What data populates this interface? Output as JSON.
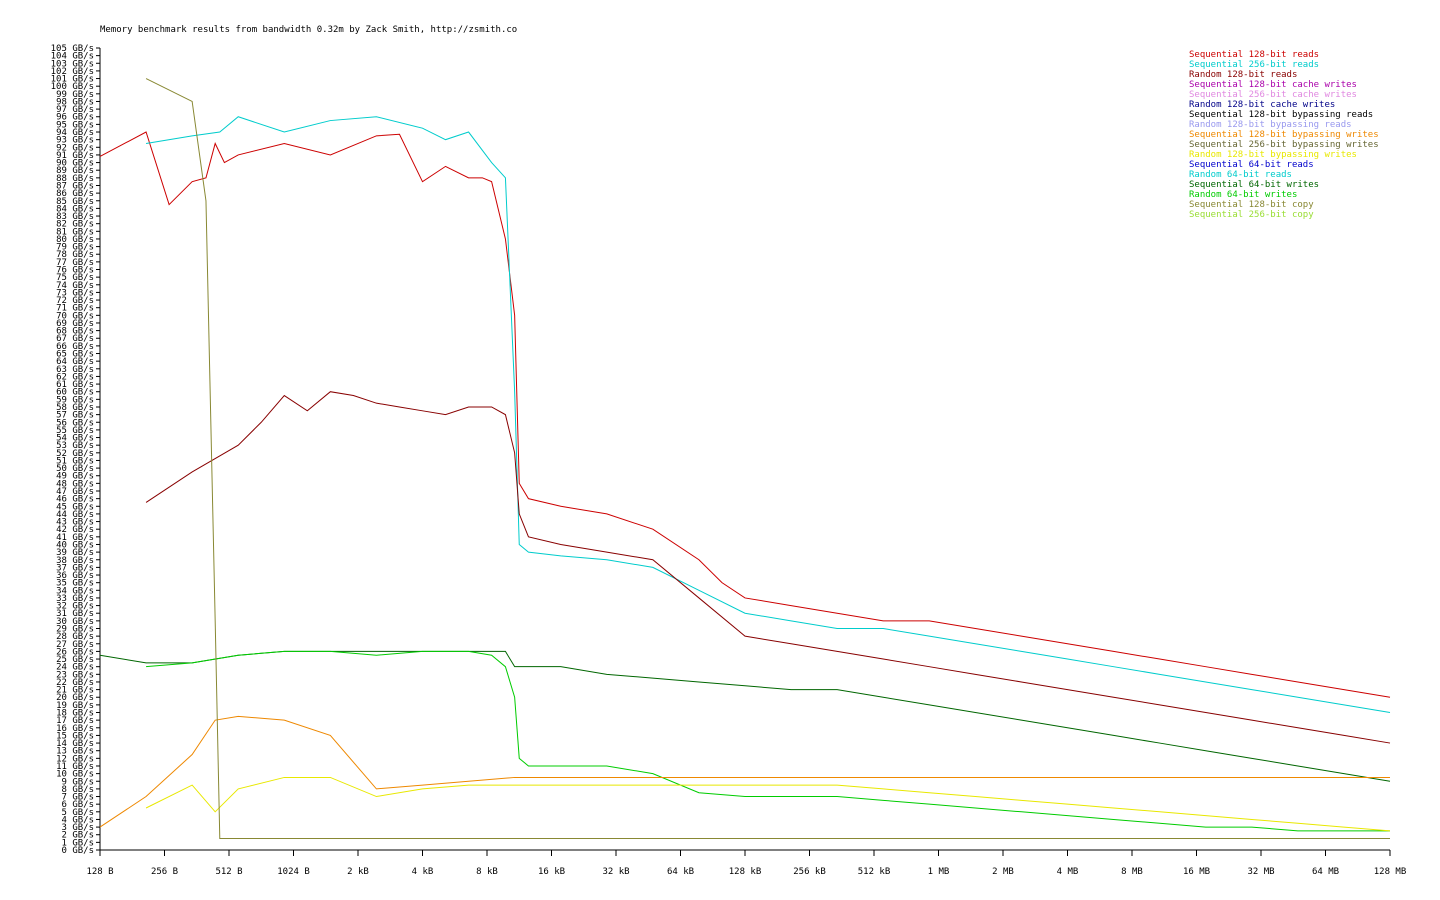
{
  "chart_data": {
    "type": "line",
    "title": "Memory benchmark results from bandwidth 0.32m by Zack Smith, http://zsmith.co",
    "xlabel": "",
    "ylabel": "",
    "ylim": [
      0,
      105
    ],
    "x_unit_label": "block size",
    "x_ticks": [
      "128 B",
      "256 B",
      "512 B",
      "1024 B",
      "2 kB",
      "4 kB",
      "8 kB",
      "16 kB",
      "32 kB",
      "64 kB",
      "128 kB",
      "256 kB",
      "512 kB",
      "1 MB",
      "2 MB",
      "4 MB",
      "8 MB",
      "16 MB",
      "32 MB",
      "64 MB",
      "128 MB"
    ],
    "y_unit": "GB/s",
    "grid": false,
    "legend_position": "top-right",
    "series": [
      {
        "name": "Sequential 128-bit reads",
        "color": "#cc0000",
        "points": [
          [
            0,
            90.8
          ],
          [
            1,
            94
          ],
          [
            1.5,
            84.5
          ],
          [
            2,
            87.5
          ],
          [
            2.3,
            88
          ],
          [
            2.5,
            92.5
          ],
          [
            2.7,
            90
          ],
          [
            3,
            91
          ],
          [
            4,
            92.5
          ],
          [
            5,
            91
          ],
          [
            6,
            93.5
          ],
          [
            6.5,
            93.7
          ],
          [
            7,
            87.5
          ],
          [
            7.5,
            89.5
          ],
          [
            8,
            88
          ],
          [
            8.3,
            88
          ],
          [
            8.5,
            87.5
          ],
          [
            8.8,
            80
          ],
          [
            9.0,
            70
          ],
          [
            9.1,
            48
          ],
          [
            9.3,
            46
          ],
          [
            10,
            45
          ],
          [
            11,
            44
          ],
          [
            12,
            42
          ],
          [
            13,
            38
          ],
          [
            13.5,
            35
          ],
          [
            14,
            33
          ],
          [
            15,
            32
          ],
          [
            16,
            31
          ],
          [
            17,
            30
          ],
          [
            18,
            30
          ],
          [
            19,
            29
          ],
          [
            20,
            28
          ],
          [
            21,
            27
          ],
          [
            22,
            26
          ],
          [
            23,
            25
          ],
          [
            24,
            24
          ],
          [
            25,
            23
          ],
          [
            26,
            22
          ],
          [
            27,
            21
          ],
          [
            28,
            20
          ]
        ]
      },
      {
        "name": "Sequential 256-bit reads",
        "color": "#00cccc",
        "points": [
          [
            1,
            92.5
          ],
          [
            2,
            93.5
          ],
          [
            2.6,
            94
          ],
          [
            3,
            96
          ],
          [
            4,
            94
          ],
          [
            5,
            95.5
          ],
          [
            6,
            96
          ],
          [
            7,
            94.5
          ],
          [
            7.5,
            93
          ],
          [
            8,
            94
          ],
          [
            8.5,
            90
          ],
          [
            8.8,
            88
          ],
          [
            9.0,
            60
          ],
          [
            9.1,
            40
          ],
          [
            9.3,
            39
          ],
          [
            10,
            38.5
          ],
          [
            11,
            38
          ],
          [
            12,
            37
          ],
          [
            13,
            34
          ],
          [
            14,
            31
          ],
          [
            15,
            30
          ],
          [
            16,
            29
          ],
          [
            17,
            29
          ],
          [
            18,
            28
          ],
          [
            19,
            27
          ],
          [
            20,
            26
          ],
          [
            21,
            25
          ],
          [
            22,
            24
          ],
          [
            23,
            23
          ],
          [
            24,
            22
          ],
          [
            25,
            21
          ],
          [
            26,
            20
          ],
          [
            27,
            19
          ],
          [
            28,
            18
          ]
        ]
      },
      {
        "name": "Random 128-bit reads",
        "color": "#880000",
        "points": [
          [
            1,
            45.5
          ],
          [
            2,
            49.5
          ],
          [
            3,
            53
          ],
          [
            3.5,
            56
          ],
          [
            4,
            59.5
          ],
          [
            4.5,
            57.5
          ],
          [
            5,
            60
          ],
          [
            5.5,
            59.5
          ],
          [
            6,
            58.5
          ],
          [
            6.5,
            58
          ],
          [
            7,
            57.5
          ],
          [
            7.5,
            57
          ],
          [
            8,
            58
          ],
          [
            8.5,
            58
          ],
          [
            8.8,
            57
          ],
          [
            9.0,
            52
          ],
          [
            9.1,
            44
          ],
          [
            9.3,
            41
          ],
          [
            10,
            40
          ],
          [
            11,
            39
          ],
          [
            12,
            38
          ],
          [
            13,
            33
          ],
          [
            14,
            28
          ],
          [
            15,
            27
          ],
          [
            16,
            26
          ],
          [
            17,
            25
          ],
          [
            18,
            24
          ],
          [
            19,
            23
          ],
          [
            20,
            22
          ],
          [
            21,
            21
          ],
          [
            22,
            20
          ],
          [
            23,
            19
          ],
          [
            24,
            18
          ],
          [
            25,
            17
          ],
          [
            26,
            16
          ],
          [
            27,
            15
          ],
          [
            28,
            14
          ]
        ]
      },
      {
        "name": "Sequential 64-bit writes",
        "color": "#006600",
        "points": [
          [
            0,
            25.5
          ],
          [
            1,
            24.5
          ],
          [
            2,
            24.5
          ],
          [
            3,
            25.5
          ],
          [
            4,
            26
          ],
          [
            5,
            26
          ],
          [
            6,
            26
          ],
          [
            7,
            26
          ],
          [
            8,
            26
          ],
          [
            8.8,
            26
          ],
          [
            9.0,
            24
          ],
          [
            9.3,
            24
          ],
          [
            10,
            24
          ],
          [
            11,
            23
          ],
          [
            12,
            22.5
          ],
          [
            13,
            22
          ],
          [
            14,
            21.5
          ],
          [
            15,
            21
          ],
          [
            16,
            21
          ],
          [
            17,
            20
          ],
          [
            18,
            19
          ],
          [
            19,
            18
          ],
          [
            20,
            17
          ],
          [
            21,
            16
          ],
          [
            22,
            15
          ],
          [
            23,
            14
          ],
          [
            24,
            13
          ],
          [
            25,
            12
          ],
          [
            26,
            11
          ],
          [
            27,
            10
          ],
          [
            28,
            9
          ]
        ]
      },
      {
        "name": "Random 64-bit writes",
        "color": "#00cc00",
        "points": [
          [
            1,
            24
          ],
          [
            2,
            24.5
          ],
          [
            3,
            25.5
          ],
          [
            4,
            26
          ],
          [
            5,
            26
          ],
          [
            6,
            25.5
          ],
          [
            7,
            26
          ],
          [
            8,
            26
          ],
          [
            8.5,
            25.5
          ],
          [
            8.8,
            24
          ],
          [
            9.0,
            20
          ],
          [
            9.1,
            12
          ],
          [
            9.3,
            11
          ],
          [
            10,
            11
          ],
          [
            11,
            11
          ],
          [
            12,
            10
          ],
          [
            13,
            7.5
          ],
          [
            14,
            7
          ],
          [
            15,
            7
          ],
          [
            16,
            7
          ],
          [
            17,
            6.5
          ],
          [
            18,
            6
          ],
          [
            19,
            5.5
          ],
          [
            20,
            5
          ],
          [
            21,
            4.5
          ],
          [
            22,
            4
          ],
          [
            23,
            3.5
          ],
          [
            24,
            3
          ],
          [
            25,
            3
          ],
          [
            26,
            2.5
          ],
          [
            27,
            2.5
          ],
          [
            28,
            2.5
          ]
        ]
      },
      {
        "name": "Random 128-bit bypassing writes",
        "color": "#e8e800",
        "points": [
          [
            1,
            5.5
          ],
          [
            2,
            8.5
          ],
          [
            2.5,
            5
          ],
          [
            3,
            8
          ],
          [
            4,
            9.5
          ],
          [
            5,
            9.5
          ],
          [
            6,
            7
          ],
          [
            7,
            8
          ],
          [
            8,
            8.5
          ],
          [
            9,
            8.5
          ],
          [
            10,
            8.5
          ],
          [
            11,
            8.5
          ],
          [
            12,
            8.5
          ],
          [
            13,
            8.5
          ],
          [
            14,
            8.5
          ],
          [
            15,
            8.5
          ],
          [
            16,
            8.5
          ],
          [
            17,
            8
          ],
          [
            18,
            7.5
          ],
          [
            19,
            7
          ],
          [
            20,
            6.5
          ],
          [
            21,
            6
          ],
          [
            22,
            5.5
          ],
          [
            23,
            5
          ],
          [
            24,
            4.5
          ],
          [
            25,
            4
          ],
          [
            26,
            3.5
          ],
          [
            27,
            3
          ],
          [
            28,
            2.5
          ]
        ]
      },
      {
        "name": "Sequential 128-bit bypassing writes",
        "color": "#ee8800",
        "points": [
          [
            0,
            3
          ],
          [
            1,
            7
          ],
          [
            2,
            12.5
          ],
          [
            2.5,
            17
          ],
          [
            3,
            17.5
          ],
          [
            4,
            17
          ],
          [
            5,
            15
          ],
          [
            6,
            8
          ],
          [
            7,
            8.5
          ],
          [
            8,
            9
          ],
          [
            9,
            9.5
          ],
          [
            10,
            9.5
          ],
          [
            11,
            9.5
          ],
          [
            12,
            9.5
          ],
          [
            13,
            9.5
          ],
          [
            14,
            9.5
          ],
          [
            15,
            9.5
          ],
          [
            16,
            9.5
          ],
          [
            17,
            9.5
          ],
          [
            18,
            9.5
          ],
          [
            19,
            9.5
          ],
          [
            20,
            9.5
          ],
          [
            21,
            9.5
          ],
          [
            22,
            9.5
          ],
          [
            23,
            9.5
          ],
          [
            24,
            9.5
          ],
          [
            25,
            9.5
          ],
          [
            26,
            9.5
          ],
          [
            27,
            9.5
          ],
          [
            28,
            9.5
          ]
        ]
      },
      {
        "name": "Sequential 128-bit copy",
        "color": "#888833",
        "points": [
          [
            1,
            101
          ],
          [
            2,
            98
          ],
          [
            2.3,
            85
          ],
          [
            2.5,
            30
          ],
          [
            2.6,
            1.5
          ],
          [
            3,
            1.5
          ],
          [
            4,
            1.5
          ],
          [
            5,
            1.5
          ],
          [
            6,
            1.5
          ],
          [
            7,
            1.5
          ],
          [
            8,
            1.5
          ],
          [
            9,
            1.5
          ],
          [
            10,
            1.5
          ],
          [
            11,
            1.5
          ],
          [
            12,
            1.5
          ],
          [
            13,
            1.5
          ],
          [
            14,
            1.5
          ],
          [
            15,
            1.5
          ],
          [
            16,
            1.5
          ],
          [
            17,
            1.5
          ],
          [
            18,
            1.5
          ],
          [
            19,
            1.5
          ],
          [
            20,
            1.5
          ],
          [
            21,
            1.5
          ],
          [
            22,
            1.5
          ],
          [
            23,
            1.5
          ],
          [
            24,
            1.5
          ],
          [
            25,
            1.5
          ],
          [
            26,
            1.5
          ],
          [
            27,
            1.5
          ],
          [
            28,
            1.5
          ]
        ]
      }
    ]
  },
  "legend": {
    "items": [
      {
        "label": "Sequential 128-bit reads",
        "color": "#cc0000"
      },
      {
        "label": "Sequential 256-bit reads",
        "color": "#00cccc"
      },
      {
        "label": "Random 128-bit reads",
        "color": "#880000"
      },
      {
        "label": "Sequential 128-bit cache writes",
        "color": "#aa00aa"
      },
      {
        "label": "Sequential 256-bit cache writes",
        "color": "#e088e0"
      },
      {
        "label": "Random 128-bit cache writes",
        "color": "#000088"
      },
      {
        "label": "Sequential 128-bit bypassing reads",
        "color": "#000000"
      },
      {
        "label": "Random 128-bit bypassing reads",
        "color": "#9999ee"
      },
      {
        "label": "Sequential 128-bit bypassing writes",
        "color": "#ee8800"
      },
      {
        "label": "Sequential 256-bit bypassing writes",
        "color": "#666633"
      },
      {
        "label": "Random 128-bit bypassing writes",
        "color": "#e8e800"
      },
      {
        "label": "Sequential 64-bit reads",
        "color": "#0000cc"
      },
      {
        "label": "Random 64-bit reads",
        "color": "#00cccc"
      },
      {
        "label": "Sequential 64-bit writes",
        "color": "#006600"
      },
      {
        "label": "Random 64-bit writes",
        "color": "#00cc00"
      },
      {
        "label": "Sequential 128-bit copy",
        "color": "#888833"
      },
      {
        "label": "Sequential 256-bit copy",
        "color": "#99dd33"
      }
    ]
  }
}
